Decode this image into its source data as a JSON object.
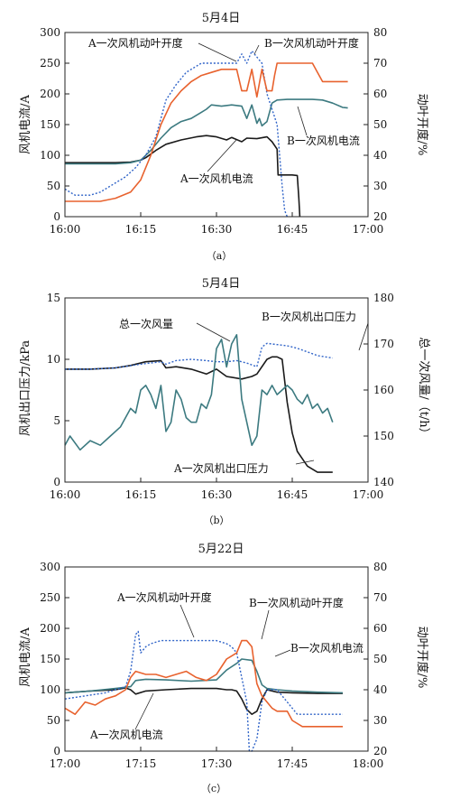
{
  "colors": {
    "black": "#1a1a1a",
    "teal": "#3c7a80",
    "orange": "#e8622e",
    "blue": "#3064c8"
  },
  "chart_data": [
    {
      "type": "line",
      "title": "5月4日",
      "caption": "（a）",
      "xlabel": "",
      "ylabel": "风机电流/A",
      "y2label": "动叶开度/%",
      "xlim": [
        960,
        1020
      ],
      "xticks": [
        "16:00",
        "16:15",
        "16:30",
        "16:45",
        "17:00"
      ],
      "xtick_values": [
        960,
        975,
        990,
        1005,
        1020
      ],
      "ylim": [
        0,
        300
      ],
      "yticks": [
        0,
        50,
        100,
        150,
        200,
        250,
        300
      ],
      "y2lim": [
        20,
        80
      ],
      "y2ticks": [
        20,
        30,
        40,
        50,
        60,
        70,
        80
      ],
      "annotations": [
        "A一次风机动叶开度",
        "B一次风机动叶开度",
        "B一次风机电流",
        "A一次风机电流"
      ],
      "series": [
        {
          "name": "A一次风机电流",
          "axis": "left",
          "color": "black",
          "dash": false,
          "x": [
            960,
            965,
            970,
            973,
            975,
            976,
            978,
            980,
            983,
            986,
            988,
            990,
            992,
            993,
            995,
            996,
            998,
            1000,
            1001,
            1002,
            1002.2,
            1005,
            1006,
            1006.3,
            1006.5
          ],
          "y": [
            88,
            88,
            88,
            89,
            92,
            96,
            108,
            118,
            125,
            130,
            132,
            130,
            125,
            129,
            122,
            128,
            127,
            130,
            122,
            110,
            68,
            68,
            67,
            30,
            0
          ]
        },
        {
          "name": "B一次风机电流",
          "axis": "left",
          "color": "teal",
          "dash": false,
          "x": [
            960,
            965,
            970,
            973,
            975,
            977,
            979,
            981,
            983,
            985,
            987,
            988,
            989,
            991,
            993,
            995,
            996,
            997,
            998,
            998.5,
            999,
            1000,
            1001,
            1002,
            1004,
            1006,
            1009,
            1011,
            1013,
            1015,
            1016
          ],
          "y": [
            86,
            86,
            86,
            88,
            92,
            108,
            128,
            145,
            155,
            160,
            170,
            175,
            182,
            180,
            182,
            180,
            160,
            182,
            152,
            160,
            148,
            155,
            185,
            190,
            191,
            191,
            191,
            190,
            185,
            178,
            177
          ]
        },
        {
          "name": "A一次风机动叶开度",
          "axis": "right",
          "color": "blue",
          "dash": true,
          "x": [
            960,
            962,
            965,
            967,
            970,
            972,
            974,
            976,
            978,
            979,
            980,
            982,
            984,
            986,
            987,
            989,
            991,
            993,
            994,
            995,
            996,
            997,
            998,
            999,
            1000,
            1001,
            1002,
            1002.5,
            1003,
            1003.5,
            1004
          ],
          "y": [
            29,
            27,
            27,
            28,
            31,
            33,
            36,
            40,
            46,
            52,
            58,
            63,
            67,
            69,
            70,
            70,
            70,
            70,
            70,
            73,
            70,
            74,
            72,
            70,
            60,
            55,
            50,
            40,
            30,
            22,
            20
          ]
        },
        {
          "name": "B一次风机动叶开度",
          "axis": "right",
          "color": "orange",
          "dash": false,
          "x": [
            960,
            962,
            965,
            967,
            970,
            973,
            975,
            977,
            979,
            981,
            983,
            985,
            987,
            989,
            991,
            992,
            993,
            994,
            995,
            996,
            997,
            998,
            999,
            1000,
            1001,
            1001.5,
            1002,
            1004,
            1006,
            1008,
            1009,
            1010,
            1011,
            1012,
            1016
          ],
          "y": [
            25,
            25,
            25,
            25,
            26,
            28,
            32,
            40,
            50,
            57,
            61,
            64,
            66,
            67,
            68,
            68,
            68,
            68,
            61,
            61,
            68,
            59,
            68,
            61,
            61,
            66,
            70,
            70,
            70,
            70,
            70,
            67,
            64,
            64,
            64
          ]
        }
      ]
    },
    {
      "type": "line",
      "title": "5月4日",
      "caption": "（b）",
      "xlabel": "",
      "ylabel": "风机出口压力/kPa",
      "y2label": "总一次风量/（t/h）",
      "xlim": [
        960,
        1020
      ],
      "xticks": [
        "16:00",
        "16:15",
        "16:30",
        "16:45",
        "17:00"
      ],
      "xtick_values": [
        960,
        975,
        990,
        1005,
        1020
      ],
      "ylim": [
        0,
        15
      ],
      "yticks": [
        0,
        5,
        10,
        15
      ],
      "y2lim": [
        140,
        180
      ],
      "y2ticks": [
        140,
        150,
        160,
        170,
        180
      ],
      "annotations": [
        "总一次风量",
        "B一次风机出口压力",
        "A一次风机出口压力"
      ],
      "series": [
        {
          "name": "A一次风机出口压力",
          "axis": "left",
          "color": "black",
          "dash": false,
          "x": [
            960,
            965,
            970,
            973,
            976,
            979,
            980,
            982,
            985,
            988,
            990,
            992,
            995,
            997,
            998,
            1000,
            1001,
            1002,
            1003,
            1004,
            1005,
            1006,
            1008,
            1010,
            1013
          ],
          "y": [
            9.2,
            9.2,
            9.3,
            9.5,
            9.8,
            9.9,
            9.3,
            9.4,
            9.2,
            8.8,
            9.2,
            8.6,
            8.4,
            8.6,
            8.8,
            10.0,
            10.2,
            10.2,
            10.0,
            6.5,
            4.0,
            2.5,
            1.3,
            0.8,
            0.8
          ]
        },
        {
          "name": "B一次风机出口压力",
          "axis": "left",
          "color": "blue",
          "dash": true,
          "x": [
            960,
            965,
            970,
            975,
            979,
            980,
            982,
            985,
            988,
            990,
            992,
            994,
            996,
            998,
            999,
            1000,
            1002,
            1004,
            1006,
            1008,
            1010,
            1013
          ],
          "y": [
            9.2,
            9.2,
            9.3,
            9.6,
            9.8,
            9.6,
            9.9,
            10.0,
            9.9,
            9.8,
            9.8,
            9.9,
            9.7,
            9.4,
            11.0,
            11.3,
            11.2,
            11.1,
            10.9,
            10.6,
            10.3,
            10.1
          ]
        },
        {
          "name": "总一次风量",
          "axis": "right",
          "color": "teal",
          "dash": false,
          "x": [
            960,
            961,
            963,
            965,
            967,
            969,
            971,
            973,
            974,
            975,
            976,
            977,
            978,
            979,
            980,
            981,
            982,
            983,
            984,
            985,
            986,
            987,
            988,
            989,
            990,
            991,
            992,
            993,
            994,
            995,
            996,
            997,
            998,
            999,
            1000,
            1001,
            1002,
            1003,
            1004,
            1005,
            1006,
            1007,
            1008,
            1009,
            1010,
            1011,
            1012,
            1013
          ],
          "y": [
            148,
            150,
            147,
            149,
            148,
            150,
            152,
            156,
            155,
            160,
            161,
            159,
            156,
            161,
            151,
            153,
            160,
            158,
            154,
            153,
            153,
            157,
            156,
            159,
            169,
            171,
            165,
            170,
            172,
            158,
            153,
            148,
            150,
            160,
            159,
            161,
            159,
            160,
            161,
            160,
            158,
            157,
            159,
            156,
            157,
            155,
            156,
            153
          ]
        }
      ]
    },
    {
      "type": "line",
      "title": "5月22日",
      "caption": "（c）",
      "xlabel": "",
      "ylabel": "风机电流/A",
      "y2label": "动叶开度/%",
      "xlim": [
        1020,
        1080
      ],
      "xticks": [
        "17:00",
        "17:15",
        "17:30",
        "17:45",
        "18:00"
      ],
      "xtick_values": [
        1020,
        1035,
        1050,
        1065,
        1080
      ],
      "ylim": [
        0,
        300
      ],
      "yticks": [
        0,
        50,
        100,
        150,
        200,
        250,
        300
      ],
      "y2lim": [
        20,
        80
      ],
      "y2ticks": [
        20,
        30,
        40,
        50,
        60,
        70,
        80
      ],
      "annotations": [
        "A一次风机动叶开度",
        "B一次风机动叶开度",
        "B一次风机电流",
        "A一次风机电流"
      ],
      "series": [
        {
          "name": "A一次风机电流",
          "axis": "left",
          "color": "black",
          "dash": false,
          "x": [
            1020,
            1025,
            1030,
            1032,
            1033,
            1034,
            1036,
            1040,
            1045,
            1050,
            1052,
            1053,
            1054,
            1055,
            1056,
            1057,
            1058,
            1059,
            1060,
            1062,
            1065,
            1070,
            1075
          ],
          "y": [
            95,
            98,
            100,
            103,
            100,
            93,
            98,
            100,
            102,
            102,
            100,
            100,
            98,
            85,
            68,
            60,
            65,
            85,
            100,
            96,
            95,
            94,
            94
          ]
        },
        {
          "name": "B一次风机电流",
          "axis": "left",
          "color": "teal",
          "dash": false,
          "x": [
            1020,
            1025,
            1030,
            1033,
            1034,
            1036,
            1040,
            1045,
            1050,
            1052,
            1054,
            1055,
            1057,
            1058,
            1059,
            1060,
            1062,
            1065,
            1070,
            1075
          ],
          "y": [
            95,
            98,
            102,
            105,
            115,
            117,
            116,
            114,
            116,
            132,
            143,
            150,
            148,
            130,
            108,
            102,
            100,
            98,
            96,
            95
          ]
        },
        {
          "name": "A一次风机动叶开度",
          "axis": "right",
          "color": "blue",
          "dash": true,
          "x": [
            1020,
            1024,
            1028,
            1032,
            1033,
            1034,
            1034.5,
            1035,
            1036,
            1037,
            1039,
            1045,
            1050,
            1052,
            1053,
            1054,
            1055,
            1056,
            1056.5,
            1057,
            1058,
            1059,
            1060,
            1062,
            1064,
            1066,
            1070,
            1075
          ],
          "y": [
            37,
            38,
            39,
            41,
            46,
            58,
            59,
            52,
            54,
            55,
            56,
            56,
            56,
            55,
            54,
            52,
            44,
            36,
            20,
            20,
            24,
            36,
            40,
            40,
            36,
            32,
            32,
            32
          ]
        },
        {
          "name": "B一次风机动叶开度",
          "axis": "right",
          "color": "orange",
          "dash": false,
          "x": [
            1020,
            1022,
            1024,
            1026,
            1028,
            1030,
            1032,
            1033,
            1034,
            1036,
            1038,
            1040,
            1042,
            1044,
            1046,
            1048,
            1050,
            1052,
            1054,
            1055,
            1056,
            1057,
            1058,
            1059,
            1060,
            1061,
            1062,
            1063,
            1064,
            1065,
            1067,
            1070,
            1075
          ],
          "y": [
            34,
            32,
            36,
            35,
            37,
            38,
            40,
            44,
            46,
            45,
            45,
            44,
            45,
            46,
            44,
            43,
            45,
            50,
            52,
            56,
            56,
            54,
            42,
            38,
            36,
            34,
            33,
            33,
            33,
            30,
            28,
            28,
            28
          ]
        }
      ]
    }
  ]
}
